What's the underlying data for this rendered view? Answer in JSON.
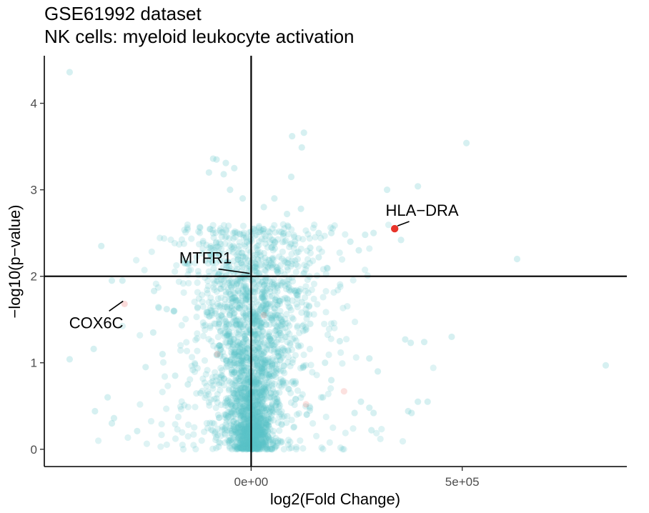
{
  "chart_data": {
    "type": "scatter",
    "title": "GSE61992 dataset",
    "subtitle": "NK cells: myeloid leukocyte activation",
    "xlabel": "log2(Fold Change)",
    "ylabel": "−log10(p−value)",
    "xlim": [
      -490000,
      890000
    ],
    "ylim": [
      -0.2,
      4.55
    ],
    "x_ticks": [
      {
        "value": 0,
        "label": "0e+00"
      },
      {
        "value": 500000,
        "label": "5e+05"
      }
    ],
    "y_ticks": [
      {
        "value": 0,
        "label": "0"
      },
      {
        "value": 1,
        "label": "1"
      },
      {
        "value": 2,
        "label": "2"
      },
      {
        "value": 3,
        "label": "3"
      },
      {
        "value": 4,
        "label": "4"
      }
    ],
    "reference_lines": {
      "vertical_x": 0,
      "horizontal_y": 2
    },
    "grid": false,
    "colors": {
      "background_points": "#5bc5c8",
      "highlight": "#e8342a",
      "axis": "#000000",
      "tick_text": "#4d4d4d"
    },
    "labeled_points": [
      {
        "label": "HLA−DRA",
        "x": 340000,
        "y": 2.55,
        "label_x": 405000,
        "label_y": 2.7
      },
      {
        "label": "MTFR1",
        "x": 0,
        "y": 2.0,
        "label_x": -108000,
        "label_y": 2.15
      },
      {
        "label": "COX6C",
        "x": -300000,
        "y": 1.68,
        "label_x": -367000,
        "label_y": 1.4
      }
    ],
    "faint_highlight_points": [
      {
        "x": 220000,
        "y": 0.67
      },
      {
        "x": 130000,
        "y": 0.52
      },
      {
        "x": -80000,
        "y": 1.1
      },
      {
        "x": 30000,
        "y": 1.55
      }
    ],
    "scatter_points": [
      {
        "x": -430000,
        "y": 4.36
      },
      {
        "x": 510000,
        "y": 3.54
      },
      {
        "x": 125000,
        "y": 3.66
      },
      {
        "x": 97000,
        "y": 3.62
      },
      {
        "x": 120000,
        "y": 3.49
      },
      {
        "x": 395000,
        "y": 3.04
      },
      {
        "x": 322000,
        "y": 3.0
      },
      {
        "x": -90000,
        "y": 3.36
      },
      {
        "x": -82000,
        "y": 3.35
      },
      {
        "x": -60000,
        "y": 3.31
      },
      {
        "x": -100000,
        "y": 3.2
      },
      {
        "x": -40000,
        "y": 3.25
      },
      {
        "x": -65000,
        "y": 3.18
      },
      {
        "x": 95000,
        "y": 3.15
      },
      {
        "x": 55000,
        "y": 2.9
      },
      {
        "x": -50000,
        "y": 3.0
      },
      {
        "x": -20000,
        "y": 2.9
      },
      {
        "x": 30000,
        "y": 2.8
      },
      {
        "x": 85000,
        "y": 2.72
      },
      {
        "x": 118000,
        "y": 2.78
      },
      {
        "x": 290000,
        "y": 2.5
      },
      {
        "x": 355000,
        "y": 2.42
      },
      {
        "x": 630000,
        "y": 2.2
      },
      {
        "x": -355000,
        "y": 2.35
      },
      {
        "x": 270000,
        "y": 2.48
      },
      {
        "x": 235000,
        "y": 2.4
      },
      {
        "x": 255000,
        "y": 2.3
      },
      {
        "x": 160000,
        "y": 2.5
      },
      {
        "x": 190000,
        "y": 2.5
      },
      {
        "x": 140000,
        "y": 2.33
      },
      {
        "x": 160000,
        "y": 2.22
      },
      {
        "x": -330000,
        "y": 1.95
      },
      {
        "x": -305000,
        "y": 1.95
      },
      {
        "x": -230000,
        "y": 1.83
      },
      {
        "x": -200000,
        "y": 1.62
      },
      {
        "x": -232000,
        "y": 1.35
      },
      {
        "x": -430000,
        "y": 1.04
      },
      {
        "x": -373000,
        "y": 1.16
      },
      {
        "x": 840000,
        "y": 0.97
      },
      {
        "x": 475000,
        "y": 1.3
      },
      {
        "x": 410000,
        "y": 1.24
      },
      {
        "x": 365000,
        "y": 1.27
      },
      {
        "x": 378000,
        "y": 1.23
      },
      {
        "x": 280000,
        "y": 1.05
      },
      {
        "x": 300000,
        "y": 0.9
      },
      {
        "x": 395000,
        "y": 0.55
      },
      {
        "x": 418000,
        "y": 0.55
      },
      {
        "x": 380000,
        "y": 0.42
      },
      {
        "x": 372000,
        "y": 0.44
      },
      {
        "x": -340000,
        "y": 0.6
      },
      {
        "x": -370000,
        "y": 0.44
      },
      {
        "x": -325000,
        "y": 0.36
      },
      {
        "x": -330000,
        "y": 0.3
      },
      {
        "x": -270000,
        "y": 0.21
      },
      {
        "x": 290000,
        "y": 0.42
      },
      {
        "x": 280000,
        "y": 0.48
      },
      {
        "x": 260000,
        "y": 0.55
      },
      {
        "x": 245000,
        "y": 0.42
      },
      {
        "x": 285000,
        "y": 0.22
      },
      {
        "x": -250000,
        "y": 0.95
      },
      {
        "x": -210000,
        "y": 1.1
      },
      {
        "x": -180000,
        "y": 0.85
      },
      {
        "x": -150000,
        "y": 0.75
      },
      {
        "x": -120000,
        "y": 0.65
      },
      {
        "x": 175000,
        "y": 1.0
      },
      {
        "x": 210000,
        "y": 1.25
      },
      {
        "x": 190000,
        "y": 0.8
      },
      {
        "x": 170000,
        "y": 0.6
      },
      {
        "x": 140000,
        "y": 1.45
      },
      {
        "x": 120000,
        "y": 1.7
      }
    ]
  }
}
